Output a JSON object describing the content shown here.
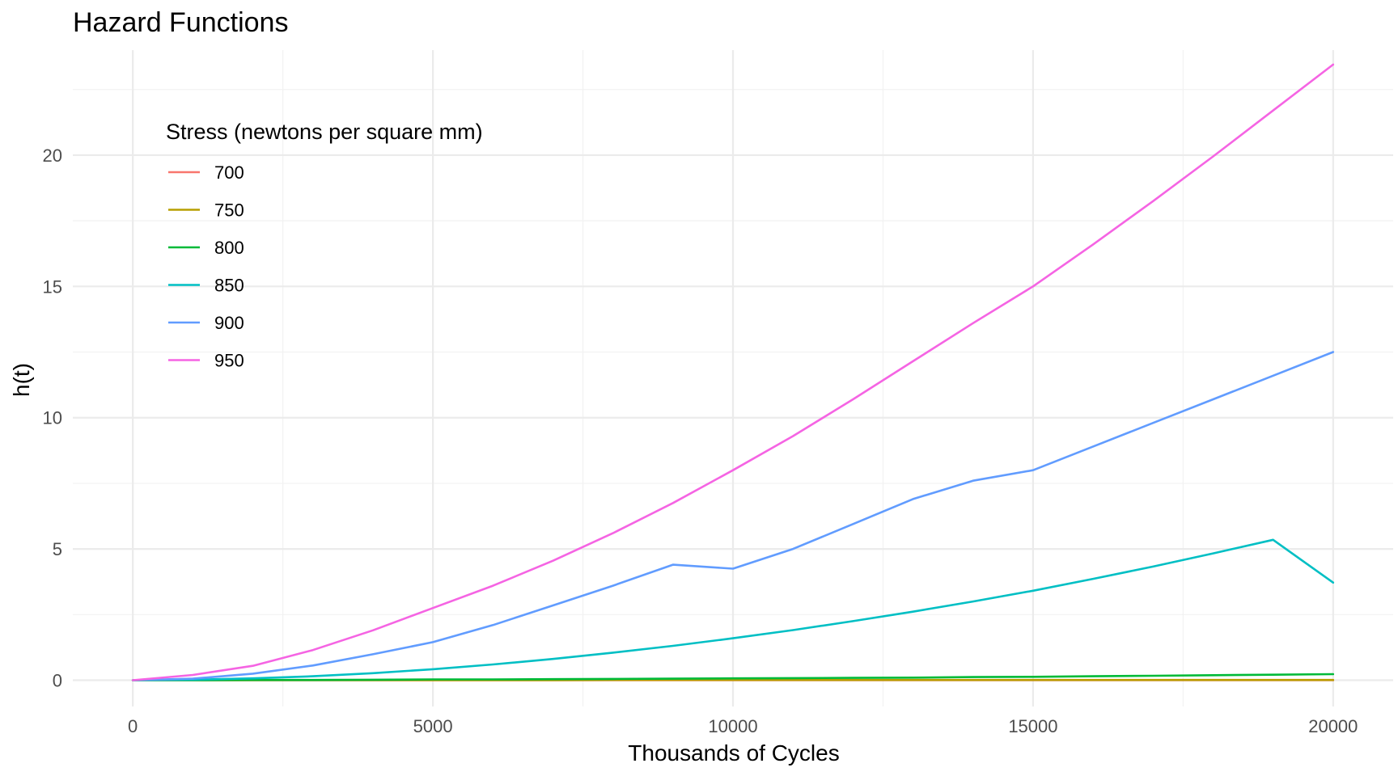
{
  "chart_data": {
    "type": "line",
    "title": "Hazard Functions",
    "xlabel": "Thousands of Cycles",
    "ylabel": "h(t)",
    "xlim": [
      -1000,
      21000
    ],
    "ylim": [
      -1.0,
      24.0
    ],
    "x_ticks": [
      0,
      5000,
      10000,
      15000,
      20000
    ],
    "y_ticks": [
      0,
      5,
      10,
      15,
      20
    ],
    "grid": true,
    "legend": {
      "title": "Stress (newtons per square mm)",
      "placement": "top-left"
    },
    "x": [
      0,
      1000,
      2000,
      3000,
      4000,
      5000,
      6000,
      7000,
      8000,
      9000,
      10000,
      11000,
      12000,
      13000,
      14000,
      15000,
      16000,
      17000,
      18000,
      19000,
      20000
    ],
    "series": [
      {
        "name": "700",
        "color": "#F8766D",
        "values": [
          0,
          0,
          0,
          0,
          0,
          0,
          0,
          0,
          0,
          0,
          0,
          0,
          0,
          0,
          0,
          0,
          0,
          0,
          0,
          0,
          0
        ]
      },
      {
        "name": "750",
        "color": "#B79F00",
        "values": [
          0,
          0,
          0,
          0,
          0,
          0,
          0,
          0,
          0.01,
          0.01,
          0.01,
          0.01,
          0.01,
          0.01,
          0.01,
          0.01,
          0.01,
          0.01,
          0.01,
          0.01,
          0.01
        ]
      },
      {
        "name": "800",
        "color": "#00BA38",
        "values": [
          0,
          0,
          0.01,
          0.01,
          0.02,
          0.03,
          0.03,
          0.04,
          0.05,
          0.06,
          0.07,
          0.08,
          0.09,
          0.1,
          0.12,
          0.13,
          0.15,
          0.17,
          0.19,
          0.21,
          0.23
        ]
      },
      {
        "name": "850",
        "color": "#00BFC4",
        "values": [
          0,
          0.02,
          0.07,
          0.15,
          0.27,
          0.42,
          0.6,
          0.81,
          1.05,
          1.31,
          1.6,
          1.91,
          2.25,
          2.61,
          3.0,
          3.41,
          3.86,
          4.33,
          4.83,
          5.35,
          3.72
        ]
      },
      {
        "name": "900",
        "color": "#619CFF",
        "values": [
          0,
          0.06,
          0.25,
          0.56,
          0.99,
          1.45,
          2.1,
          2.85,
          3.6,
          4.4,
          4.25,
          5.0,
          5.95,
          6.9,
          7.6,
          8.0,
          8.9,
          9.8,
          10.7,
          11.6,
          12.5
        ]
      },
      {
        "name": "950",
        "color": "#F564E3",
        "values": [
          0,
          0.2,
          0.55,
          1.15,
          1.9,
          2.75,
          3.6,
          4.55,
          5.6,
          6.75,
          8.0,
          9.3,
          10.7,
          12.15,
          13.6,
          15.0,
          16.6,
          18.25,
          19.95,
          21.7,
          23.45
        ]
      }
    ]
  }
}
